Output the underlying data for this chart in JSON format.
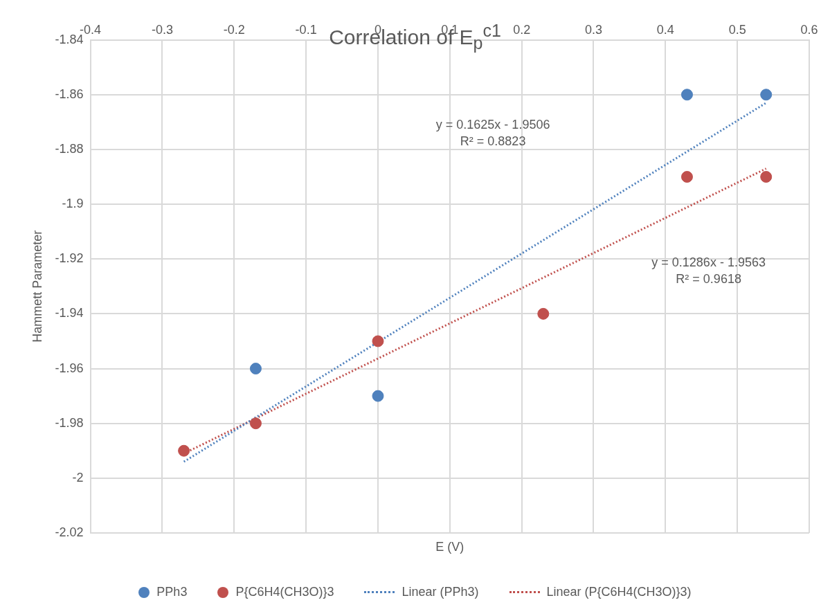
{
  "chart_data": {
    "type": "scatter",
    "title": "Correlation of E$_{p}$$^{c1}$",
    "xlabel": "E (V)",
    "ylabel": "Hammett Parameter",
    "xlim": [
      -0.4,
      0.6
    ],
    "xticks": [
      -0.4,
      -0.3,
      -0.2,
      -0.1,
      0,
      0.1,
      0.2,
      0.3,
      0.4,
      0.5,
      0.6
    ],
    "ylim": [
      -2.02,
      -1.84
    ],
    "yticks": [
      -2.02,
      -2,
      -1.98,
      -1.96,
      -1.94,
      -1.92,
      -1.9,
      -1.88,
      -1.86,
      -1.84
    ],
    "grid": true,
    "legend": "bottom",
    "marker": "circle",
    "series": [
      {
        "name": "PPh3",
        "type": "scatter",
        "color": "#4f81bd",
        "x": [
          -0.17,
          0,
          0.43,
          0.54
        ],
        "values": [
          -1.96,
          -1.97,
          -1.86,
          -1.86
        ]
      },
      {
        "name": "P{C6H4(CH3O)}3",
        "type": "scatter",
        "color": "#c0504d",
        "x": [
          -0.27,
          -0.17,
          0,
          0.23,
          0.43,
          0.54
        ],
        "values": [
          -1.99,
          -1.98,
          -1.95,
          -1.94,
          -1.89,
          -1.89
        ]
      },
      {
        "name": "Linear (PPh3)",
        "type": "line",
        "marker": "none",
        "line_style": "dotted",
        "color": "#4f81bd",
        "x": [
          -0.27,
          0.54
        ],
        "values": [
          -1.994,
          -1.863
        ]
      },
      {
        "name": "Linear (P{C6H4(CH3O)}3)",
        "type": "line",
        "marker": "none",
        "line_style": "dotted",
        "color": "#c0504d",
        "x": [
          -0.27,
          0.54
        ],
        "values": [
          -1.991,
          -1.887
        ]
      }
    ],
    "annotations": [
      "y = 0.1625x - 1.9506\nR² = 0.8823",
      "y = 0.1286x - 1.9563\nR² = 0.9618"
    ]
  }
}
